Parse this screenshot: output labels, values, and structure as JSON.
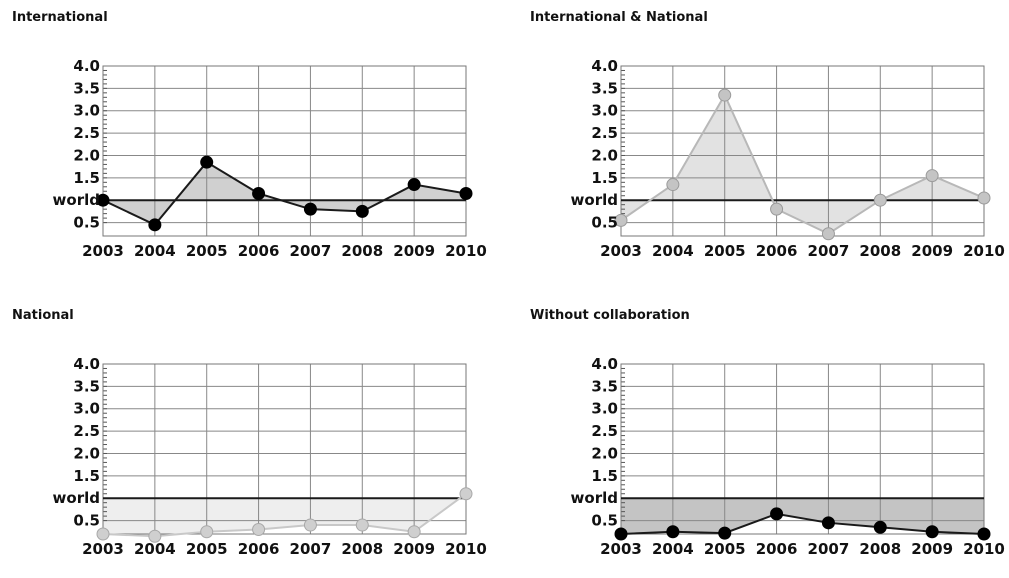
{
  "chart_data": [
    {
      "type": "line",
      "title": "International",
      "x": [
        "2003",
        "2004",
        "2005",
        "2006",
        "2007",
        "2008",
        "2009",
        "2010"
      ],
      "values": [
        1.0,
        0.45,
        1.85,
        1.15,
        0.8,
        0.75,
        1.35,
        1.15
      ],
      "baseline": 1.0,
      "baseline_label": "world",
      "yticks": [
        "4.0",
        "3.5",
        "3.0",
        "2.5",
        "2.0",
        "1.5",
        "world",
        "0.5"
      ],
      "ylim": [
        0.2,
        4.0
      ],
      "grid": true,
      "colors": {
        "line": "#1a1a1a",
        "marker": "#000000",
        "fill": "#d0d0d0",
        "marker_stroke": "#000000"
      }
    },
    {
      "type": "line",
      "title": "International & National",
      "x": [
        "2003",
        "2004",
        "2005",
        "2006",
        "2007",
        "2008",
        "2009",
        "2010"
      ],
      "values": [
        0.55,
        1.35,
        3.35,
        0.8,
        0.25,
        1.0,
        1.55,
        1.05
      ],
      "baseline": 1.0,
      "baseline_label": "world",
      "yticks": [
        "4.0",
        "3.5",
        "3.0",
        "2.5",
        "2.0",
        "1.5",
        "world",
        "0.5"
      ],
      "ylim": [
        0.2,
        4.0
      ],
      "grid": true,
      "colors": {
        "line": "#b8b8b8",
        "marker": "#c4c4c4",
        "fill": "#e2e2e2",
        "marker_stroke": "#9a9a9a"
      }
    },
    {
      "type": "line",
      "title": "National",
      "x": [
        "2003",
        "2004",
        "2005",
        "2006",
        "2007",
        "2008",
        "2009",
        "2010"
      ],
      "values": [
        0.2,
        0.15,
        0.25,
        0.3,
        0.4,
        0.4,
        0.25,
        1.1
      ],
      "baseline": 1.0,
      "baseline_label": "world",
      "yticks": [
        "4.0",
        "3.5",
        "3.0",
        "2.5",
        "2.0",
        "1.5",
        "world",
        "0.5"
      ],
      "ylim": [
        0.2,
        4.0
      ],
      "grid": true,
      "colors": {
        "line": "#c8c8c8",
        "marker": "#cfcfcf",
        "fill": "#eeeeee",
        "marker_stroke": "#a8a8a8"
      }
    },
    {
      "type": "line",
      "title": "Without collaboration",
      "x": [
        "2003",
        "2004",
        "2005",
        "2006",
        "2007",
        "2008",
        "2009",
        "2010"
      ],
      "values": [
        0.2,
        0.25,
        0.22,
        0.65,
        0.45,
        0.35,
        0.25,
        0.2
      ],
      "baseline": 1.0,
      "baseline_label": "world",
      "yticks": [
        "4.0",
        "3.5",
        "3.0",
        "2.5",
        "2.0",
        "1.5",
        "world",
        "0.5"
      ],
      "ylim": [
        0.2,
        4.0
      ],
      "grid": true,
      "colors": {
        "line": "#1a1a1a",
        "marker": "#000000",
        "fill": "#c4c4c4",
        "marker_stroke": "#000000"
      }
    }
  ]
}
